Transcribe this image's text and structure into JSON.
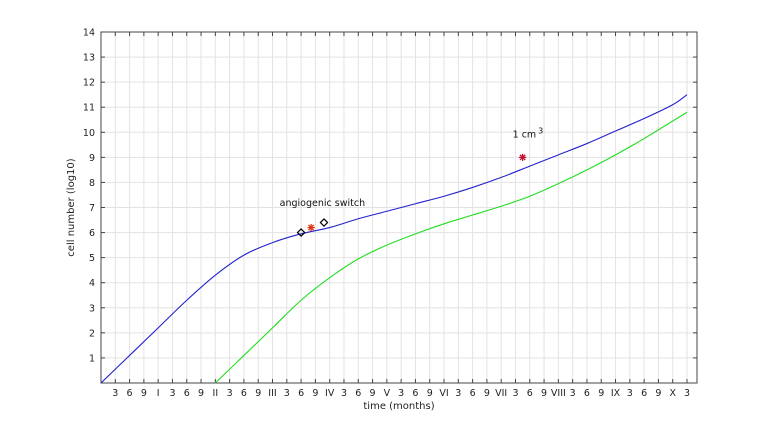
{
  "chart_data": {
    "type": "line",
    "title": "",
    "xlabel": "time (months)",
    "ylabel": "cell number (log10)",
    "xlim": [
      0,
      64
    ],
    "ylim": [
      0,
      14
    ],
    "grid": true,
    "x_ticks": [
      {
        "x": 1,
        "label": "3"
      },
      {
        "x": 2,
        "label": "6"
      },
      {
        "x": 3,
        "label": "9"
      },
      {
        "x": 4,
        "label": "I"
      },
      {
        "x": 5,
        "label": "3"
      },
      {
        "x": 6,
        "label": "6"
      },
      {
        "x": 7,
        "label": "9"
      },
      {
        "x": 8,
        "label": "II"
      },
      {
        "x": 9,
        "label": "3"
      },
      {
        "x": 10,
        "label": "6"
      },
      {
        "x": 11,
        "label": "9"
      },
      {
        "x": 12,
        "label": "III"
      },
      {
        "x": 13,
        "label": "3"
      },
      {
        "x": 14,
        "label": "6"
      },
      {
        "x": 15,
        "label": "9"
      },
      {
        "x": 16,
        "label": "IV"
      },
      {
        "x": 17,
        "label": "3"
      },
      {
        "x": 18,
        "label": "6"
      },
      {
        "x": 19,
        "label": "9"
      },
      {
        "x": 20,
        "label": "V"
      },
      {
        "x": 21,
        "label": "3"
      },
      {
        "x": 22,
        "label": "6"
      },
      {
        "x": 23,
        "label": "9"
      },
      {
        "x": 24,
        "label": "VI"
      },
      {
        "x": 25,
        "label": "3"
      },
      {
        "x": 26,
        "label": "6"
      },
      {
        "x": 27,
        "label": "9"
      },
      {
        "x": 28,
        "label": "VII"
      },
      {
        "x": 29,
        "label": "3"
      },
      {
        "x": 30,
        "label": "6"
      },
      {
        "x": 31,
        "label": "9"
      },
      {
        "x": 32,
        "label": "VIII"
      },
      {
        "x": 33,
        "label": "3"
      },
      {
        "x": 34,
        "label": "6"
      },
      {
        "x": 35,
        "label": "9"
      },
      {
        "x": 36,
        "label": "IX"
      },
      {
        "x": 37,
        "label": "3"
      },
      {
        "x": 38,
        "label": "6"
      },
      {
        "x": 39,
        "label": "9"
      },
      {
        "x": 40,
        "label": "X"
      },
      {
        "x": 41,
        "label": "3"
      }
    ],
    "y_ticks": [
      1,
      2,
      3,
      4,
      5,
      6,
      7,
      8,
      9,
      10,
      11,
      12,
      13,
      14
    ],
    "series": [
      {
        "color": "#2222cc",
        "points": [
          [
            0,
            0
          ],
          [
            2,
            1.1
          ],
          [
            4,
            2.2
          ],
          [
            6,
            3.3
          ],
          [
            8,
            4.3
          ],
          [
            10,
            5.1
          ],
          [
            12,
            5.6
          ],
          [
            14,
            5.95
          ],
          [
            16,
            6.2
          ],
          [
            18,
            6.55
          ],
          [
            20,
            6.85
          ],
          [
            22,
            7.15
          ],
          [
            24,
            7.45
          ],
          [
            26,
            7.8
          ],
          [
            28,
            8.2
          ],
          [
            30,
            8.65
          ],
          [
            32,
            9.1
          ],
          [
            34,
            9.55
          ],
          [
            36,
            10.05
          ],
          [
            38,
            10.55
          ],
          [
            40,
            11.1
          ],
          [
            41,
            11.5
          ]
        ]
      },
      {
        "color": "#22dd22",
        "points": [
          [
            8,
            0
          ],
          [
            10,
            1.1
          ],
          [
            12,
            2.2
          ],
          [
            14,
            3.3
          ],
          [
            16,
            4.2
          ],
          [
            18,
            4.95
          ],
          [
            20,
            5.5
          ],
          [
            22,
            5.95
          ],
          [
            24,
            6.35
          ],
          [
            26,
            6.7
          ],
          [
            28,
            7.05
          ],
          [
            30,
            7.45
          ],
          [
            32,
            7.95
          ],
          [
            34,
            8.5
          ],
          [
            36,
            9.1
          ],
          [
            38,
            9.75
          ],
          [
            40,
            10.45
          ],
          [
            41,
            10.8
          ]
        ]
      }
    ],
    "markers": [
      {
        "type": "diamond",
        "x": 14,
        "y": 6.0,
        "color": "#000000"
      },
      {
        "type": "diamond",
        "x": 15.6,
        "y": 6.4,
        "color": "#000000"
      },
      {
        "type": "star",
        "x": 14.7,
        "y": 6.2,
        "color": "#e03010"
      },
      {
        "type": "star",
        "x": 29.5,
        "y": 9.0,
        "color": "#c01030"
      }
    ],
    "annotations": [
      {
        "text": "angiogenic switch",
        "x": 12.5,
        "y": 7.05
      },
      {
        "text": "1 cm",
        "sup": "3",
        "x": 28.8,
        "y": 9.8
      }
    ]
  }
}
